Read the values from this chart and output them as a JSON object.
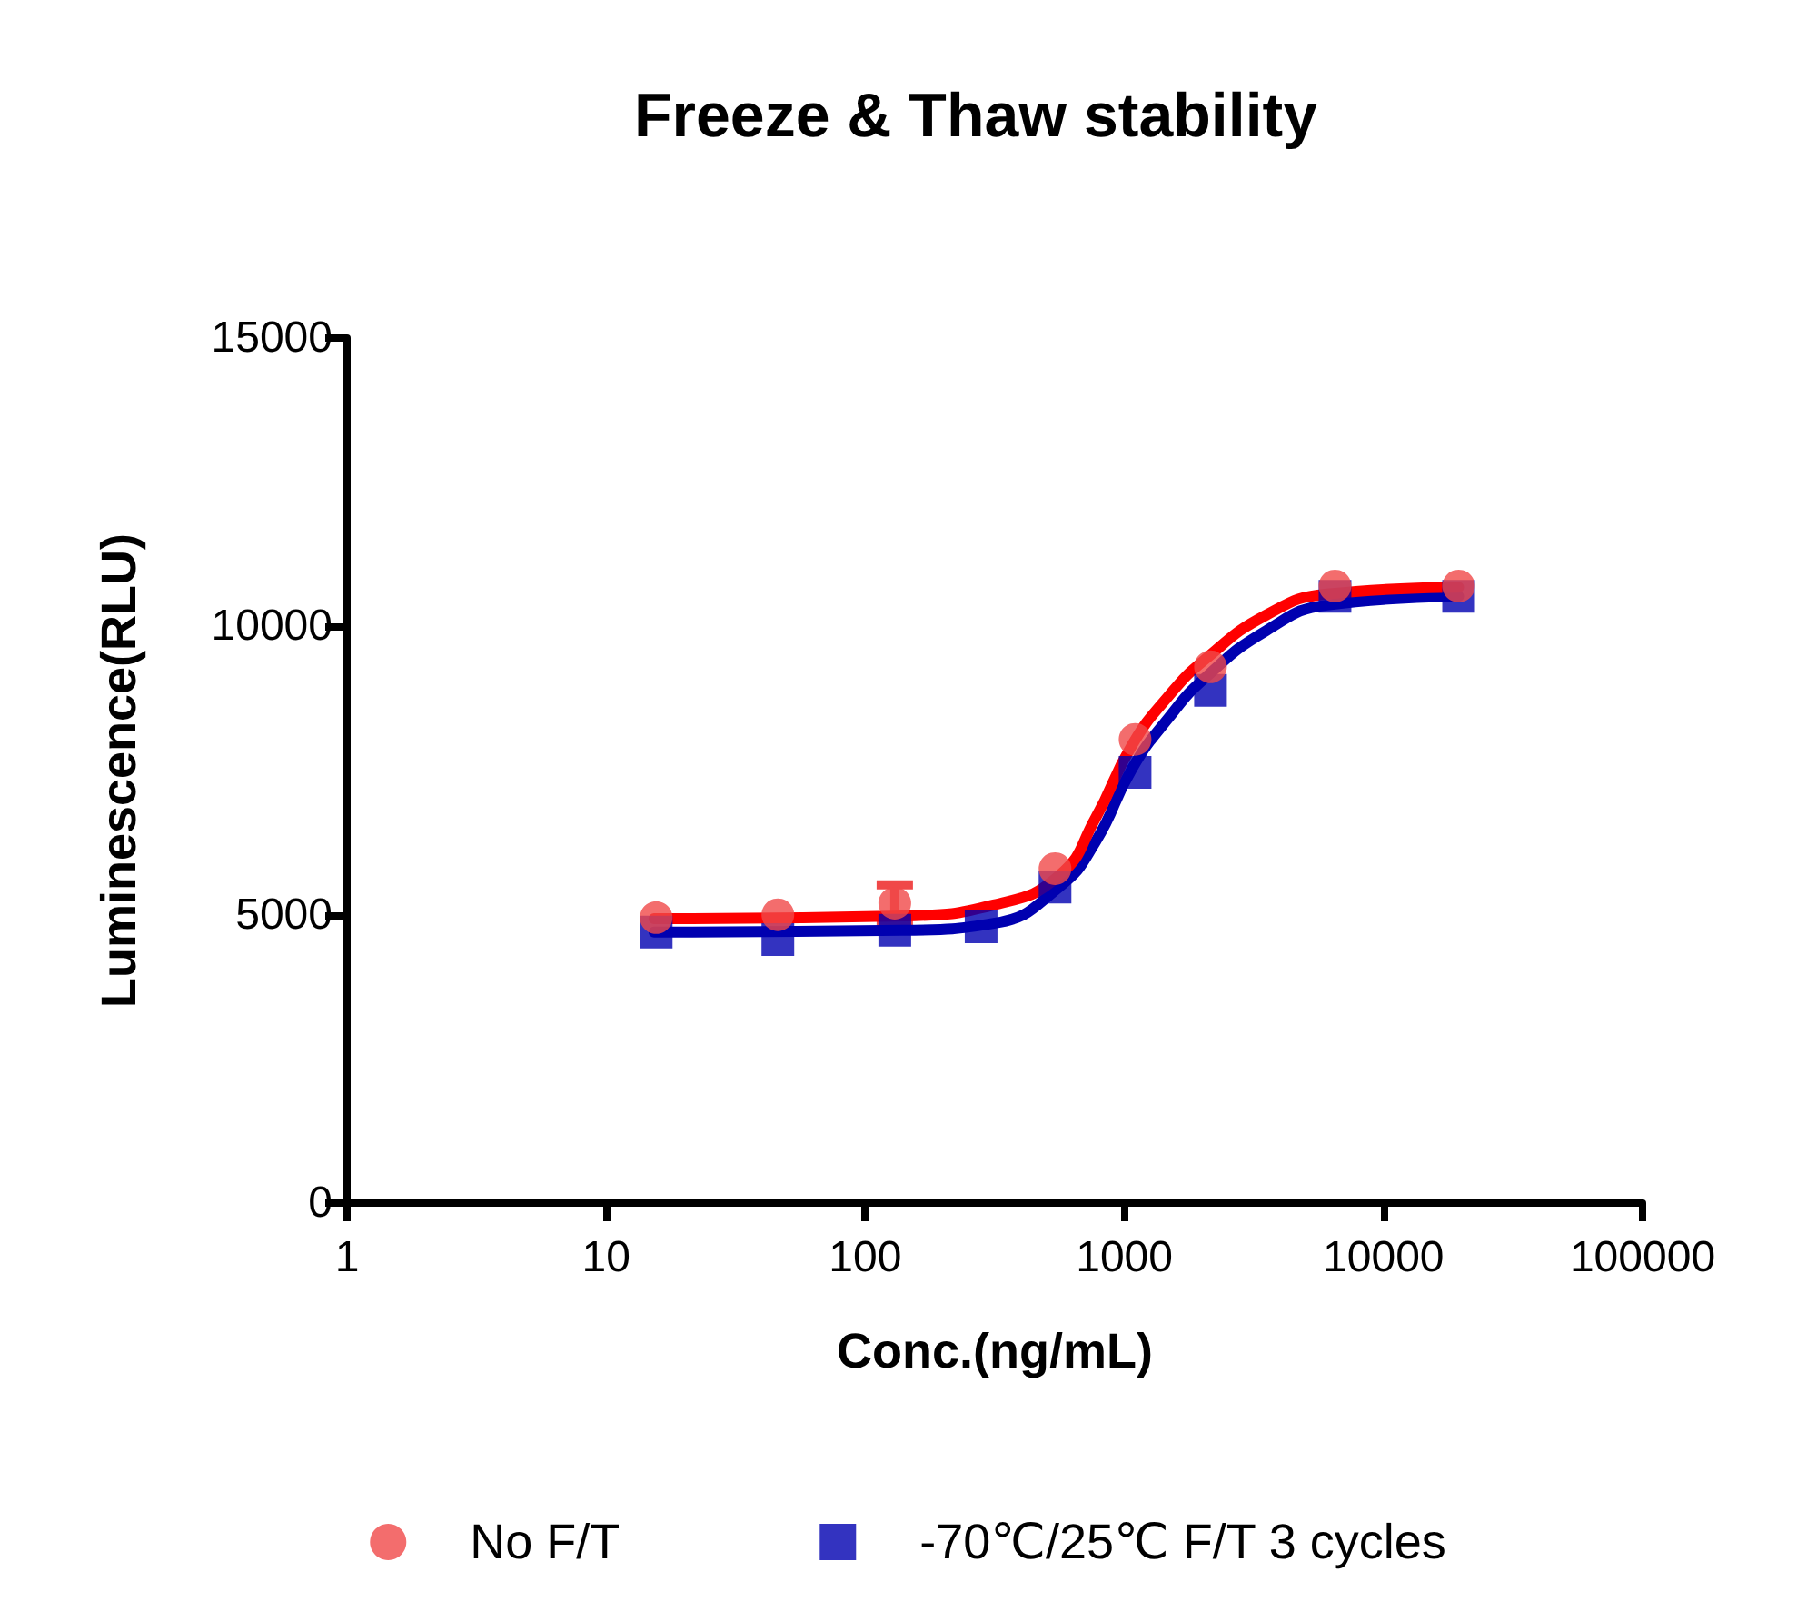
{
  "chart_data": {
    "type": "scatter",
    "title": "Freeze & Thaw stability",
    "xlabel": "Conc.(ng/mL)",
    "ylabel": "Luminescence(RLU)",
    "log": "x",
    "xlim": [
      1,
      100000
    ],
    "xticks": [
      1,
      10,
      100,
      1000,
      10000,
      100000
    ],
    "ylim": [
      0,
      15000
    ],
    "yticks": [
      0,
      5000,
      10000,
      15000
    ],
    "grid": false,
    "legend": "bottom",
    "series": [
      {
        "name": "No F/T",
        "color": "#f04848",
        "marker": "circle",
        "x": [
          15.6,
          46,
          130,
          280,
          540,
          1100,
          2150,
          6500,
          19500
        ],
        "values": [
          4950,
          5000,
          5200,
          null,
          5800,
          8040,
          9300,
          10700,
          10700
        ],
        "errors": [
          null,
          null,
          320,
          null,
          null,
          null,
          null,
          null,
          null
        ]
      },
      {
        "name": "-70℃/25℃ F/T 3 cycles",
        "color": "#0000b0",
        "marker": "square",
        "x": [
          15.6,
          46,
          130,
          280,
          540,
          1100,
          2150,
          6500,
          19500
        ],
        "values": [
          4700,
          4570,
          4730,
          4790,
          5480,
          7470,
          8890,
          10520,
          10520
        ]
      },
      {
        "type": "line",
        "color": "#0000b0",
        "marker": "none",
        "line_style": "solid",
        "x": [
          15.3,
          139,
          313,
          560,
          775,
          1070,
          1480,
          2040,
          3540,
          6060,
          19500
        ],
        "values": [
          4700,
          4730,
          4850,
          5480,
          6270,
          7530,
          8410,
          9100,
          9930,
          10370,
          10520
        ]
      },
      {
        "type": "line",
        "color": "#ff0000",
        "marker": "none",
        "line_style": "solid",
        "x": [
          15.3,
          139,
          313,
          560,
          775,
          1070,
          1480,
          2040,
          3540,
          6060,
          19500
        ],
        "values": [
          4930,
          4980,
          5170,
          5680,
          6680,
          7940,
          8790,
          9420,
          10200,
          10560,
          10680
        ]
      }
    ]
  }
}
